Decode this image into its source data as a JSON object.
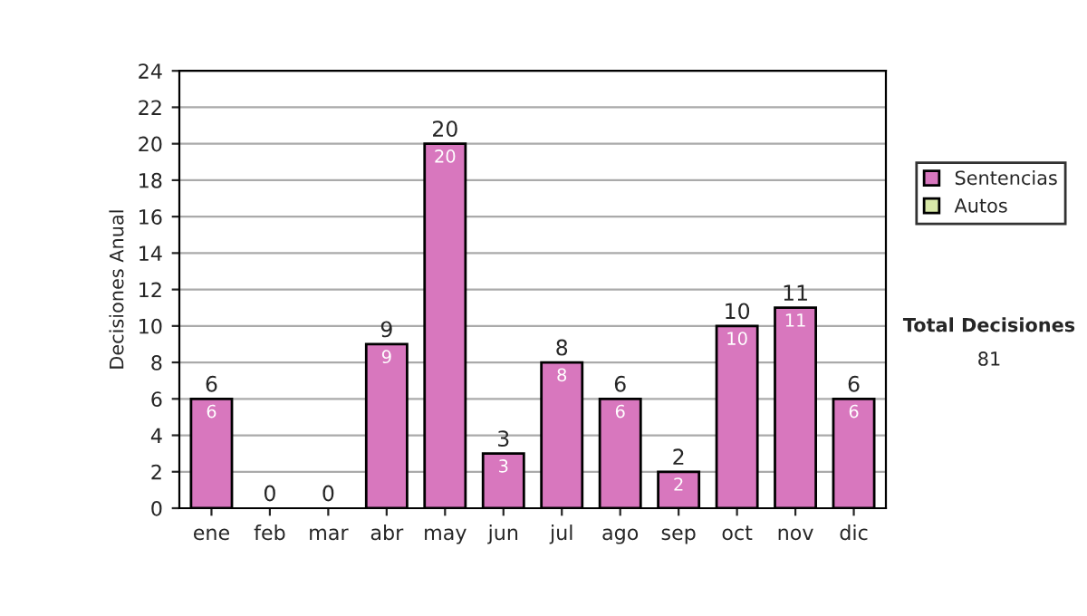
{
  "chart_data": {
    "type": "bar",
    "stacked": true,
    "ylabel": "Decisiones Anual",
    "categories": [
      "ene",
      "feb",
      "mar",
      "abr",
      "may",
      "jun",
      "jul",
      "ago",
      "sep",
      "oct",
      "nov",
      "dic"
    ],
    "series": [
      {
        "name": "Sentencias",
        "color": "#d877be",
        "values": [
          6,
          0,
          0,
          9,
          20,
          3,
          8,
          6,
          2,
          10,
          11,
          6
        ],
        "value_labels": [
          "6",
          null,
          null,
          "9",
          "20",
          "3",
          "8",
          "6",
          "2",
          "10",
          "11",
          "6"
        ]
      },
      {
        "name": "Autos",
        "color": "#d8e8a8",
        "values": [
          0,
          0,
          0,
          0,
          0,
          0,
          0,
          0,
          0,
          0,
          0,
          0
        ]
      }
    ],
    "totals": [
      "6",
      "0",
      "0",
      "9",
      "20",
      "3",
      "8",
      "6",
      "2",
      "10",
      "11",
      "6"
    ],
    "ylim": [
      0,
      24
    ],
    "yticks": [
      0,
      2,
      4,
      6,
      8,
      10,
      12,
      14,
      16,
      18,
      20,
      22,
      24
    ],
    "grid": "y",
    "legend": "right",
    "annotations": [
      "Total Decisiones",
      "81"
    ]
  }
}
